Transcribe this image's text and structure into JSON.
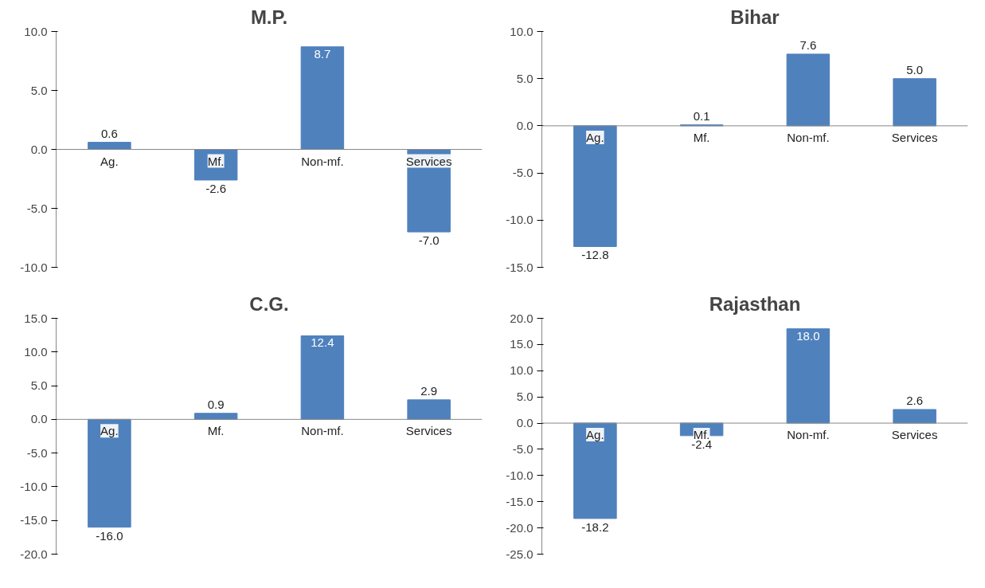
{
  "chart_data": [
    {
      "type": "bar",
      "title": "M.P.",
      "categories": [
        "Ag.",
        "Mf.",
        "Non-mf.",
        "Services"
      ],
      "values": [
        0.6,
        -2.6,
        8.7,
        -7.0
      ],
      "value_labels": [
        "0.6",
        "-2.6",
        "8.7",
        "-7.0"
      ],
      "data_labels": true,
      "color": "#4f81bd",
      "ylim": [
        -10,
        10
      ],
      "yticks": [
        {
          "value": -10,
          "label": "-10.0"
        },
        {
          "value": -5,
          "label": "-5.0"
        },
        {
          "value": 0,
          "label": "0.0"
        },
        {
          "value": 5,
          "label": "5.0"
        },
        {
          "value": 10,
          "label": "10.0"
        }
      ],
      "grid": false
    },
    {
      "type": "bar",
      "title": "Bihar",
      "categories": [
        "Ag.",
        "Mf.",
        "Non-mf.",
        "Services"
      ],
      "values": [
        -12.8,
        0.1,
        7.6,
        5.0
      ],
      "value_labels": [
        "-12.8",
        "0.1",
        "7.6",
        "5.0"
      ],
      "data_labels": true,
      "color": "#4f81bd",
      "ylim": [
        -15,
        10
      ],
      "yticks": [
        {
          "value": -15,
          "label": "-15.0"
        },
        {
          "value": -10,
          "label": "-10.0"
        },
        {
          "value": -5,
          "label": "-5.0"
        },
        {
          "value": 0,
          "label": "0.0"
        },
        {
          "value": 5,
          "label": "5.0"
        },
        {
          "value": 10,
          "label": "10.0"
        }
      ],
      "grid": false
    },
    {
      "type": "bar",
      "title": "C.G.",
      "categories": [
        "Ag.",
        "Mf.",
        "Non-mf.",
        "Services"
      ],
      "values": [
        -16.0,
        0.9,
        12.4,
        2.9
      ],
      "value_labels": [
        "-16.0",
        "0.9",
        "12.4",
        "2.9"
      ],
      "data_labels": true,
      "color": "#4f81bd",
      "ylim": [
        -20,
        15
      ],
      "yticks": [
        {
          "value": -20,
          "label": "-20.0"
        },
        {
          "value": -15,
          "label": "-15.0"
        },
        {
          "value": -10,
          "label": "-10.0"
        },
        {
          "value": -5,
          "label": "-5.0"
        },
        {
          "value": 0,
          "label": "0.0"
        },
        {
          "value": 5,
          "label": "5.0"
        },
        {
          "value": 10,
          "label": "10.0"
        },
        {
          "value": 15,
          "label": "15.0"
        }
      ],
      "grid": false
    },
    {
      "type": "bar",
      "title": "Rajasthan",
      "categories": [
        "Ag.",
        "Mf.",
        "Non-mf.",
        "Services"
      ],
      "values": [
        -18.2,
        -2.4,
        18.0,
        2.6
      ],
      "value_labels": [
        "-18.2",
        "-2.4",
        "18.0",
        "2.6"
      ],
      "data_labels": true,
      "color": "#4f81bd",
      "ylim": [
        -25,
        20
      ],
      "yticks": [
        {
          "value": -25,
          "label": "-25.0"
        },
        {
          "value": -20,
          "label": "-20.0"
        },
        {
          "value": -15,
          "label": "-15.0"
        },
        {
          "value": -10,
          "label": "-10.0"
        },
        {
          "value": -5,
          "label": "-5.0"
        },
        {
          "value": 0,
          "label": "0.0"
        },
        {
          "value": 5,
          "label": "5.0"
        },
        {
          "value": 10,
          "label": "10.0"
        },
        {
          "value": 15,
          "label": "15.0"
        },
        {
          "value": 20,
          "label": "20.0"
        }
      ],
      "grid": false
    }
  ]
}
